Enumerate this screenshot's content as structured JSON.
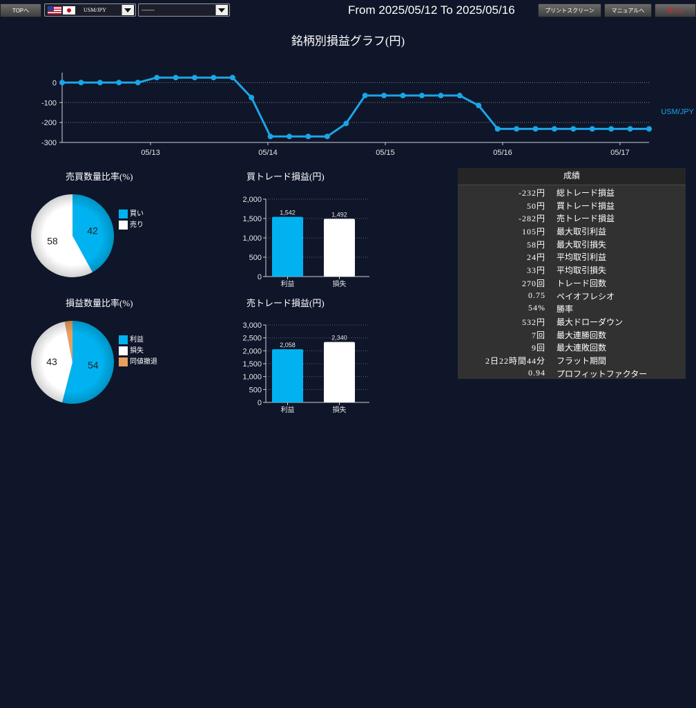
{
  "toolbar": {
    "top_label": "TOPへ",
    "symbol_select": "USM/JPY",
    "second_select": "-------",
    "range_text": "From 2025/05/12 To 2025/05/16",
    "print_label": "プリントスクリーン",
    "manual_label": "マニュアルへ",
    "close_label": "閉じる"
  },
  "page_title": "銘柄別損益グラフ(円)",
  "line_chart": {
    "chart_data": {
      "type": "line",
      "title": "銘柄別損益グラフ(円)",
      "y_ticks": [
        "0",
        "-100",
        "-200",
        "-300"
      ],
      "ylim": [
        -300,
        50
      ],
      "x_ticks": [
        "05/13",
        "05/14",
        "05/15",
        "05/16",
        "05/17"
      ],
      "series": [
        {
          "name": "USM/JPY",
          "color": "#1aa6e6",
          "values": [
            0,
            0,
            0,
            0,
            0,
            25,
            25,
            25,
            25,
            25,
            -75,
            -270,
            -270,
            -270,
            -270,
            -205,
            -65,
            -65,
            -65,
            -65,
            -65,
            -65,
            -115,
            -232,
            -232,
            -232,
            -232,
            -232,
            -232,
            -232,
            -232,
            -232
          ]
        }
      ]
    }
  },
  "pie_trade": {
    "title": "売買数量比率(%)",
    "chart_data": {
      "type": "pie",
      "slices": [
        {
          "label": "買い",
          "value": 42,
          "color": "#00b3f0"
        },
        {
          "label": "売り",
          "value": 58,
          "color": "#ffffff"
        }
      ]
    }
  },
  "pie_pl": {
    "title": "損益数量比率(%)",
    "chart_data": {
      "type": "pie",
      "slices": [
        {
          "label": "利益",
          "value": 54,
          "color": "#00b3f0"
        },
        {
          "label": "損失",
          "value": 43,
          "color": "#ffffff"
        },
        {
          "label": "同値撤退",
          "value": 3,
          "color": "#e8a060"
        }
      ]
    }
  },
  "bar_buy": {
    "title": "買トレード損益(円)",
    "chart_data": {
      "type": "bar",
      "categories": [
        "利益",
        "損失"
      ],
      "values": [
        1542,
        1492
      ],
      "labels": [
        "1,542",
        "1,492"
      ],
      "colors": [
        "#00b3f0",
        "#ffffff"
      ],
      "y_ticks": [
        "2,000",
        "1,500",
        "1,000",
        "500",
        "0"
      ],
      "ylim": [
        0,
        2000
      ]
    }
  },
  "bar_sell": {
    "title": "売トレード損益(円)",
    "chart_data": {
      "type": "bar",
      "categories": [
        "利益",
        "損失"
      ],
      "values": [
        2058,
        2340
      ],
      "labels": [
        "2,058",
        "2,340"
      ],
      "colors": [
        "#00b3f0",
        "#ffffff"
      ],
      "y_ticks": [
        "3,000",
        "2,500",
        "2,000",
        "1,500",
        "1,000",
        "500",
        "0"
      ],
      "ylim": [
        0,
        3000
      ]
    }
  },
  "results": {
    "header": "成績",
    "rows": [
      {
        "value": "-232円",
        "label": "総トレード損益"
      },
      {
        "value": "50円",
        "label": "買トレード損益"
      },
      {
        "value": "-282円",
        "label": "売トレード損益"
      },
      {
        "value": "105円",
        "label": "最大取引利益"
      },
      {
        "value": "58円",
        "label": "最大取引損失"
      },
      {
        "value": "24円",
        "label": "平均取引利益"
      },
      {
        "value": "33円",
        "label": "平均取引損失"
      },
      {
        "value": "270回",
        "label": "トレード回数"
      },
      {
        "value": "0.75",
        "label": "ペイオフレシオ"
      },
      {
        "value": "54%",
        "label": "勝率"
      },
      {
        "value": "532円",
        "label": "最大ドローダウン"
      },
      {
        "value": "7回",
        "label": "最大連勝回数"
      },
      {
        "value": "9回",
        "label": "最大連敗回数"
      },
      {
        "value": "2日22時間44分",
        "label": "フラット期間"
      },
      {
        "value": "0.94",
        "label": "プロフィットファクター"
      }
    ]
  }
}
